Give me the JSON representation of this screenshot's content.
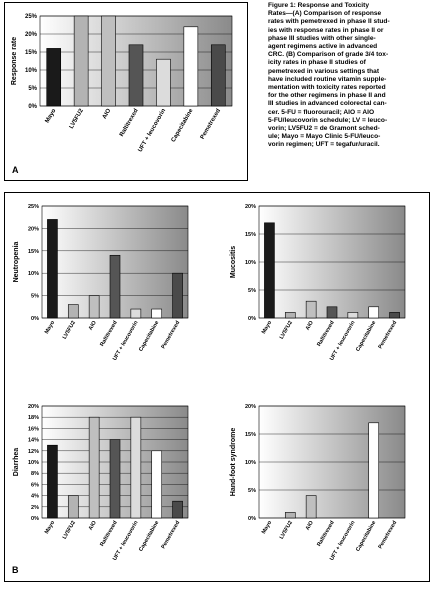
{
  "caption": "Figure 1: Response and Toxicity\nRates—(A) Comparison of response\nrates with pemetrexed in phase II stud-\nies with response rates in phase II or\nphase III studies with other single-\nagent regimens active in advanced\nCRC. (B) Comparison of grade 3/4 tox-\nicity rates in phase II studies of\npemetrexed in various settings that\nhave included routine vitamin supple-\nmentation with toxicity rates reported\nfor the other regimens in phase II and\nIII studies in advanced colorectal can-\ncer. 5-FU = fluorouracil; AIO = AIO\n5-FU/leucovorin schedule; LV = leuco-\nvorin; LV5FU2 = de Gramont sched-\nule; Mayo = Mayo Clinic 5-FU/leuco-\nvorin regimen; UFT = tegafur/uracil.",
  "panels": {
    "a": "A",
    "b": "B"
  },
  "colors": [
    "#1a1a1a",
    "#b3b3b3",
    "#bfbfbf",
    "#555555",
    "#dcdcdc",
    "#ffffff",
    "#4a4a4a"
  ],
  "chart_data": [
    {
      "id": "response",
      "type": "bar",
      "ylabel": "Response rate",
      "categories": [
        "Mayo",
        "LV5FU2",
        "AIO",
        "Raltitrexed",
        "UFT + leucovorin",
        "Capecitabine",
        "Pemetrexed"
      ],
      "values": [
        16,
        25,
        25,
        17,
        13,
        22,
        17
      ],
      "ylim": [
        0,
        25
      ],
      "yticks": [
        "0%",
        "5%",
        "10%",
        "15%",
        "20%",
        "25%"
      ]
    },
    {
      "id": "neutropenia",
      "type": "bar",
      "ylabel": "Neutropenia",
      "categories": [
        "Mayo",
        "LV5FU2",
        "AIO",
        "Raltitrexed",
        "UFT + leucovorin",
        "Capecitabine",
        "Pemetrexed"
      ],
      "values": [
        22,
        3,
        5,
        14,
        2,
        2,
        10
      ],
      "ylim": [
        0,
        25
      ],
      "yticks": [
        "0%",
        "5%",
        "10%",
        "15%",
        "20%",
        "25%"
      ]
    },
    {
      "id": "mucositis",
      "type": "bar",
      "ylabel": "Mucositis",
      "categories": [
        "Mayo",
        "LV5FU2",
        "AIO",
        "Raltitrexed",
        "UFT + leucovorin",
        "Capecitabine",
        "Pemetrexed"
      ],
      "values": [
        17,
        1,
        3,
        2,
        1,
        2,
        1
      ],
      "ylim": [
        0,
        20
      ],
      "yticks": [
        "0%",
        "5%",
        "10%",
        "15%",
        "20%"
      ]
    },
    {
      "id": "diarrhea",
      "type": "bar",
      "ylabel": "Diarrhea",
      "categories": [
        "Mayo",
        "LV5FU2",
        "AIO",
        "Raltitrexed",
        "UFT + leucovorin",
        "Capecitabine",
        "Pemetrexed"
      ],
      "values": [
        13,
        4,
        18,
        14,
        18,
        12,
        3
      ],
      "ylim": [
        0,
        20
      ],
      "yticks": [
        "0%",
        "2%",
        "4%",
        "6%",
        "8%",
        "10%",
        "12%",
        "14%",
        "16%",
        "18%",
        "20%"
      ]
    },
    {
      "id": "handfoot",
      "type": "bar",
      "ylabel": "Hand-foot syndrome",
      "categories": [
        "Mayo",
        "LV5FU2",
        "AIO",
        "Raltitrexed",
        "UFT + leucovorin",
        "Capecitabine",
        "Pemetrexed"
      ],
      "values": [
        0,
        1,
        4,
        0,
        0,
        17,
        0
      ],
      "ylim": [
        0,
        20
      ],
      "yticks": [
        "0%",
        "5%",
        "10%",
        "15%",
        "20%"
      ]
    }
  ]
}
